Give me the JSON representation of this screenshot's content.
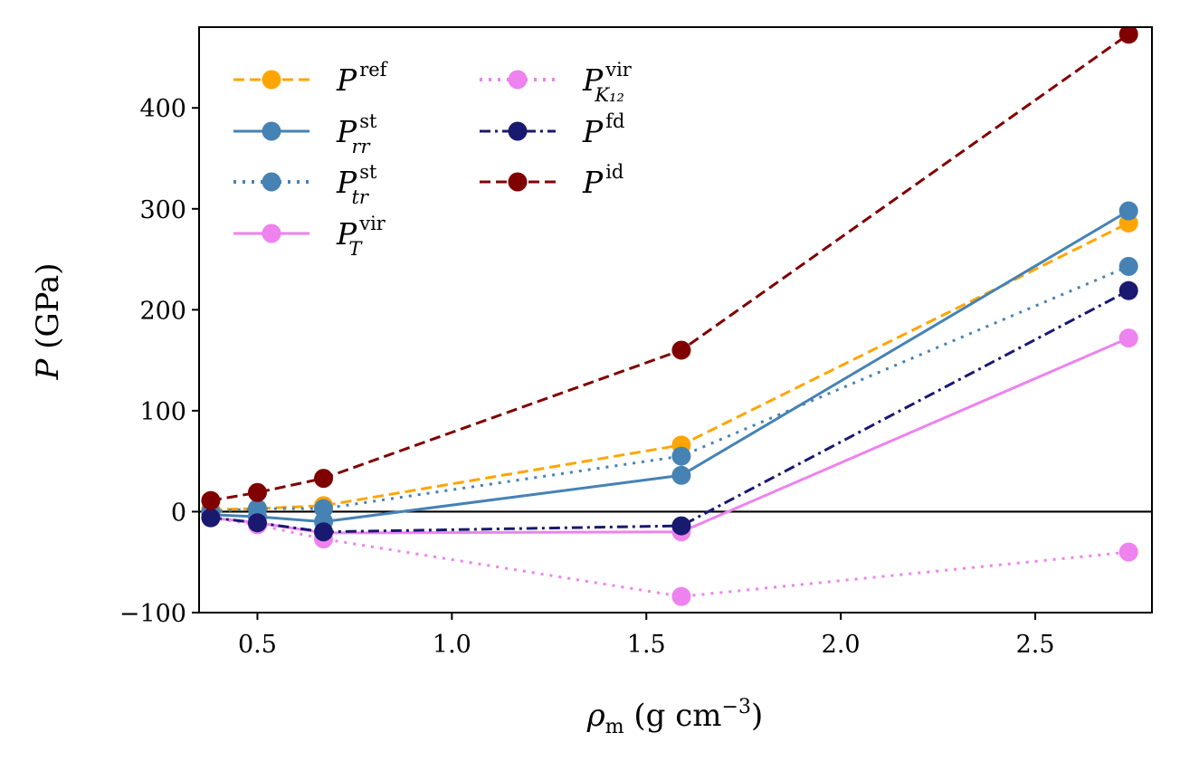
{
  "chart_data": {
    "type": "line",
    "title": "",
    "xlabel": {
      "main": "ρ",
      "sub": "m",
      "rest": " (g cm",
      "sup": "−3",
      "end": ")"
    },
    "ylabel": {
      "main": "P",
      "rest": " (GPa)"
    },
    "xlim": [
      0.35,
      2.8
    ],
    "ylim": [
      -100,
      480
    ],
    "xticks": [
      0.5,
      1.0,
      1.5,
      2.0,
      2.5
    ],
    "xtick_labels": [
      "0.5",
      "1.0",
      "1.5",
      "2.0",
      "2.5"
    ],
    "yticks": [
      -100,
      0,
      100,
      200,
      300,
      400
    ],
    "ytick_labels": [
      "−100",
      "0",
      "100",
      "200",
      "300",
      "400"
    ],
    "zero_line": true,
    "grid": false,
    "legend_position": "top-left",
    "x": [
      0.38,
      0.5,
      0.67,
      1.59,
      2.74
    ],
    "series": [
      {
        "name": "ref",
        "label_base": "P",
        "label_sup": "ref",
        "label_sub": "",
        "color": "#ffa500",
        "dash": "dashed",
        "values": [
          2,
          3,
          6,
          66,
          286
        ]
      },
      {
        "name": "rr",
        "label_base": "P",
        "label_sup": "st",
        "label_sub": "rr",
        "color": "#4682b4",
        "dash": "solid",
        "values": [
          -3,
          -5,
          -10,
          36,
          298
        ]
      },
      {
        "name": "tr",
        "label_base": "P",
        "label_sup": "st",
        "label_sub": "tr",
        "color": "#4682b4",
        "dash": "dotted",
        "values": [
          0,
          3,
          3,
          55,
          243
        ]
      },
      {
        "name": "T",
        "label_base": "P",
        "label_sup": "vir",
        "label_sub": "T",
        "color": "#ee82ee",
        "dash": "solid",
        "values": [
          -6,
          -11,
          -21,
          -20,
          172
        ]
      },
      {
        "name": "K12",
        "label_base": "P",
        "label_sup": "vir",
        "label_sub": "K₁₂",
        "color": "#ee82ee",
        "dash": "dotted",
        "values": [
          -6,
          -13,
          -27,
          -84,
          -40
        ]
      },
      {
        "name": "fd",
        "label_base": "P",
        "label_sup": "fd",
        "label_sub": "",
        "color": "#191970",
        "dash": "dashdot",
        "values": [
          -6,
          -11,
          -20,
          -14,
          219
        ]
      },
      {
        "name": "id",
        "label_base": "P",
        "label_sup": "id",
        "label_sub": "",
        "color": "#800000",
        "dash": "dashed",
        "values": [
          11,
          19,
          33,
          160,
          473
        ]
      }
    ]
  }
}
